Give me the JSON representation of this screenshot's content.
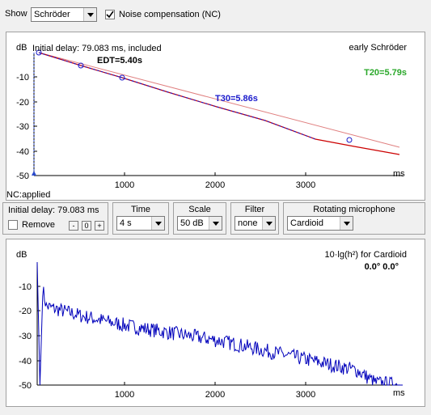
{
  "toolbar": {
    "show_label": "Show",
    "show_value": "Schröder",
    "noise_comp_label": "Noise compensation (NC)",
    "noise_comp_checked": true
  },
  "top_chart_labels": {
    "initial_delay_text": "Initial delay: 79.083 ms, included",
    "mode_text": "early Schröder",
    "nc_status": "NC:applied",
    "edt": "EDT=5.40s",
    "t30": "T30=5.86s",
    "t20": "T20=5.79s"
  },
  "controls": {
    "initial_delay": "Initial delay: 79.083 ms",
    "remove_label": "Remove",
    "minus_label": "-",
    "zero_label": "0",
    "plus_label": "+",
    "time_title": "Time",
    "time_value": "4 s",
    "scale_title": "Scale",
    "scale_value": "50 dB",
    "filter_title": "Filter",
    "filter_value": "none",
    "mic_title": "Rotating microphone",
    "mic_value": "Cardioid"
  },
  "bottom_chart_labels": {
    "title": "10·lg(h²) for Cardioid",
    "angle": "0.0° 0.0°"
  },
  "colors": {
    "edt_color": "#000000",
    "t30_color": "#1a1acc",
    "t20_color": "#2aa82a",
    "decay_curve": "#cc0000",
    "fit_line": "#e08080",
    "impulse": "#0000bb"
  },
  "chart_data": [
    {
      "type": "line",
      "ylabel": "dB",
      "xlabel": "ms",
      "xlim": [
        0,
        4000
      ],
      "ylim": [
        -50,
        0
      ],
      "x_ticks": [
        1000,
        2000,
        3000
      ],
      "y_ticks": [
        -10,
        -20,
        -30,
        -40,
        -50
      ],
      "series": [
        {
          "x": [
            0,
            500,
            1000,
            1500,
            2000,
            2500,
            3000,
            3500,
            3900
          ],
          "values": [
            0,
            -5.5,
            -10.5,
            -16,
            -21.5,
            -26.5,
            -31.5,
            -36.5,
            -41
          ]
        }
      ],
      "markers": [
        {
          "x": 0,
          "y": 0
        },
        {
          "x": 500,
          "y": -5.5
        },
        {
          "x": 1000,
          "y": -10.3
        },
        {
          "x": 3500,
          "y": -35.2
        }
      ],
      "grid": false
    },
    {
      "type": "line",
      "ylabel": "dB",
      "xlabel": "ms",
      "xlim": [
        0,
        4000
      ],
      "ylim": [
        -50,
        0
      ],
      "x_ticks": [
        1000,
        2000,
        3000
      ],
      "y_ticks": [
        -10,
        -20,
        -30,
        -40,
        -50
      ],
      "series": [
        {
          "x": [
            0,
            100,
            500,
            1000,
            1500,
            2000,
            2500,
            3000,
            3500,
            3700,
            4000
          ],
          "values": [
            0,
            -18,
            -22,
            -26,
            -29,
            -32,
            -36,
            -40,
            -44,
            -49,
            -50
          ]
        }
      ],
      "grid": false
    }
  ]
}
